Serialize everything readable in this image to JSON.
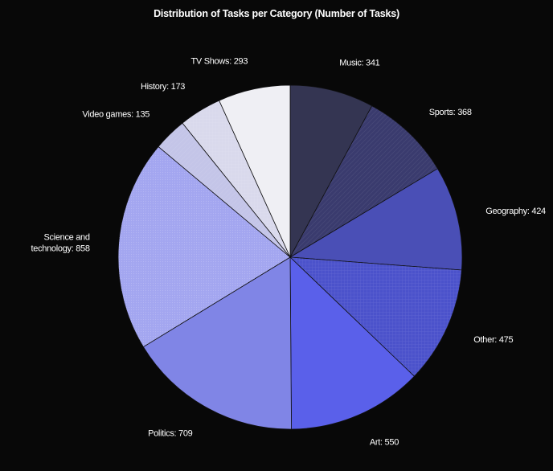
{
  "chart_data": {
    "type": "pie",
    "title": "Distribution of Tasks per Category (Number of Tasks)",
    "slices": [
      {
        "label": "Music: 341",
        "value": 341,
        "color": "#343552",
        "pattern": "none"
      },
      {
        "label": "Sports: 368",
        "value": 368,
        "color": "#3a3b6e",
        "pattern": "diag"
      },
      {
        "label": "Geography: 424",
        "value": 424,
        "color": "#4a4fb6",
        "pattern": "none"
      },
      {
        "label": "Other: 475",
        "value": 475,
        "color": "#4b52cb",
        "pattern": "grid"
      },
      {
        "label": "Art: 550",
        "value": 550,
        "color": "#5a60ea",
        "pattern": "none"
      },
      {
        "label": "Politics: 709",
        "value": 709,
        "color": "#8085e6",
        "pattern": "none"
      },
      {
        "label": "Science and\ntechnology: 858",
        "value": 858,
        "color": "#a3a6f0",
        "pattern": "dots"
      },
      {
        "label": "Video games: 135",
        "value": 135,
        "color": "#c4c5e8",
        "pattern": "diag"
      },
      {
        "label": "History: 173",
        "value": 173,
        "color": "#d9d9ec",
        "pattern": "grid"
      },
      {
        "label": "TV Shows: 293",
        "value": 293,
        "color": "#efeff4",
        "pattern": "none"
      }
    ],
    "start_angle": "12 o'clock",
    "direction": "clockwise",
    "legend": "none"
  }
}
